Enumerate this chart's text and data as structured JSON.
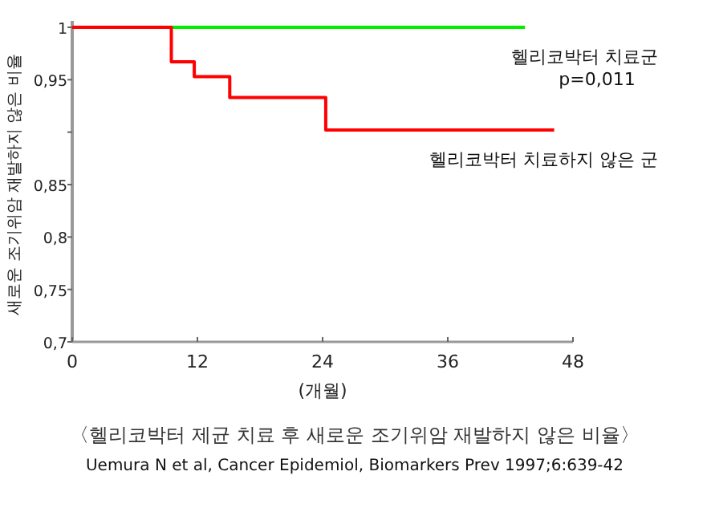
{
  "chart_data": {
    "type": "step",
    "title": "〈헬리코박터 제균 치료 후 새로운 조기위암 재발하지 않은 비율〉",
    "xlabel": "(개월)",
    "ylabel": "새로운 조기위암 재발하지 않은 비율",
    "annotations": [
      "p=0,011",
      "Uemura N et al, Cancer Epidemiol, Biomarkers Prev 1997;6:639-42"
    ],
    "series": [
      {
        "name": "헬리코박터 치료군",
        "color": "#00ee00",
        "x": [
          0,
          43.4
        ],
        "values": [
          1,
          1
        ]
      },
      {
        "name": "헬리코박터 치료하지 않은 군",
        "color": "#ff0000",
        "x": [
          0,
          9.5,
          11.7,
          15.1,
          24.3,
          46.2
        ],
        "values": [
          1,
          0.967,
          0.953,
          0.933,
          0.902,
          0.902
        ]
      }
    ],
    "xlim": [
      0,
      48
    ],
    "xticks": [
      0,
      12,
      24,
      36,
      48
    ],
    "ylim": [
      0.7,
      1
    ],
    "yticks": [
      {
        "value": 0.7,
        "label": "0,7"
      },
      {
        "value": 0.75,
        "label": "0,75"
      },
      {
        "value": 0.8,
        "label": "0,8"
      },
      {
        "value": 0.85,
        "label": "0,85"
      },
      {
        "value": 0.9,
        "label": null
      },
      {
        "value": 0.95,
        "label": "0,95"
      },
      1
    ],
    "grid": false
  }
}
